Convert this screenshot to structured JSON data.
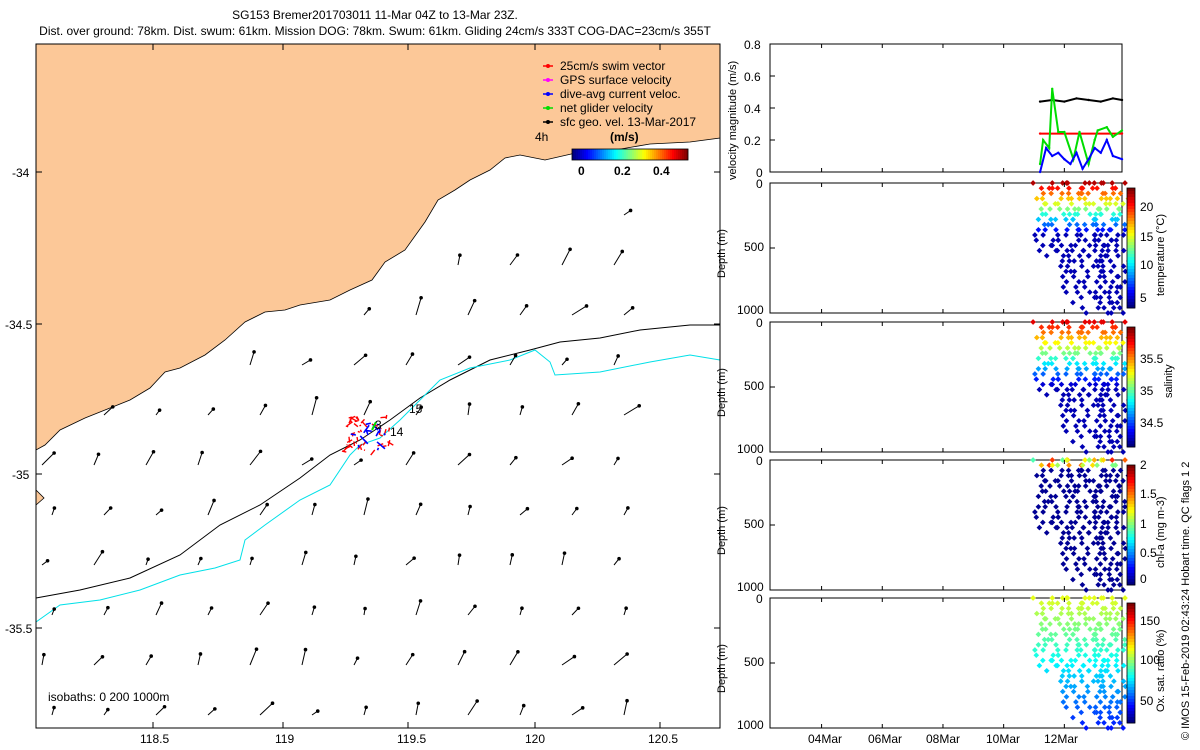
{
  "header": {
    "line1": "SG153 Bremer201703011 11-Mar 04Z to 13-Mar 23Z.",
    "line2": "Dist. over ground: 78km. Dist. swum: 61km. Mission DOG: 78km. Swum: 61km. Gliding 24cm/s 333T COG-DAC=23cm/s 355T"
  },
  "map": {
    "lon_ticks": [
      "118.5",
      "119",
      "119.5",
      "120",
      "120.5"
    ],
    "lat_ticks": [
      "-34",
      "-34.5",
      "-35",
      "-35.5"
    ],
    "legend": [
      {
        "label": "25cm/s swim vector",
        "color": "#ff0000"
      },
      {
        "label": "GPS surface velocity",
        "color": "#ff00ff"
      },
      {
        "label": "dive-avg current veloc.",
        "color": "#0000ff"
      },
      {
        "label": "net glider velocity",
        "color": "#00dd00"
      },
      {
        "label": "sfc geo. vel. 13-Mar-2017",
        "color": "#000000"
      }
    ],
    "vector_duration": "4h",
    "colorbar_units": "(m/s)",
    "colorbar_ticks": [
      "0",
      "0.2",
      "0.4"
    ],
    "isobaths_label": "isobaths: 0   200  1000m",
    "track_labels": [
      "15",
      "14",
      "3"
    ],
    "colors": {
      "land": "#fcc898",
      "isobath200": "#000000",
      "isobath1000": "#00e0e8"
    }
  },
  "right_axis_dates": [
    "04Mar",
    "06Mar",
    "08Mar",
    "10Mar",
    "12Mar"
  ],
  "chart_data": [
    {
      "type": "line",
      "ylabel": "velocity magnitude (m/s)",
      "ylim": [
        0,
        0.8
      ],
      "yticks": [
        "0",
        "0.2",
        "0.4",
        "0.6",
        "0.8"
      ],
      "xlim_days": [
        2.3,
        13.9
      ],
      "series": [
        {
          "name": "sfc geo. vel.",
          "color": "#000000",
          "x": [
            11.2,
            11.6,
            12.0,
            12.4,
            12.8,
            13.2,
            13.6,
            13.9
          ],
          "values": [
            0.44,
            0.45,
            0.44,
            0.46,
            0.45,
            0.44,
            0.46,
            0.45
          ]
        },
        {
          "name": "swim",
          "color": "#ff0000",
          "x": [
            11.2,
            13.9
          ],
          "values": [
            0.24,
            0.24
          ]
        },
        {
          "name": "net glider velocity",
          "color": "#00dd00",
          "x": [
            11.2,
            11.3,
            11.5,
            11.6,
            11.8,
            12.0,
            12.3,
            12.5,
            12.8,
            13.0,
            13.1,
            13.4,
            13.6,
            13.9
          ],
          "values": [
            0.05,
            0.2,
            0.15,
            0.52,
            0.25,
            0.25,
            0.08,
            0.25,
            0.05,
            0.2,
            0.26,
            0.28,
            0.22,
            0.26
          ]
        },
        {
          "name": "dive-avg current",
          "color": "#0000ff",
          "x": [
            11.2,
            11.4,
            11.6,
            11.8,
            12.0,
            12.2,
            12.4,
            12.6,
            12.8,
            13.0,
            13.2,
            13.4,
            13.6,
            13.9
          ],
          "values": [
            0.0,
            0.15,
            0.1,
            0.12,
            0.08,
            0.05,
            0.12,
            0.02,
            0.08,
            0.15,
            0.12,
            0.2,
            0.1,
            0.08
          ]
        }
      ]
    },
    {
      "type": "scatter",
      "ylabel": "Depth (m)",
      "clabel": "temperature (°C)",
      "ylim": [
        1000,
        0
      ],
      "yticks": [
        "0",
        "500",
        "1000"
      ],
      "cticks": [
        "5",
        "10",
        "15",
        "20"
      ],
      "crange": [
        2,
        24
      ],
      "profiles": [
        [
          11.2,
          560
        ],
        [
          11.5,
          520
        ],
        [
          11.8,
          520
        ],
        [
          12.0,
          860
        ],
        [
          12.3,
          700
        ],
        [
          12.5,
          1000
        ],
        [
          12.8,
          900
        ],
        [
          13.0,
          620
        ],
        [
          13.2,
          980
        ],
        [
          13.4,
          1000
        ],
        [
          13.6,
          1000
        ],
        [
          13.9,
          1000
        ]
      ]
    },
    {
      "type": "scatter",
      "ylabel": "Depth (m)",
      "clabel": "salinity",
      "ylim": [
        1000,
        0
      ],
      "yticks": [
        "0",
        "500",
        "1000"
      ],
      "cticks": [
        "34.5",
        "35",
        "35.5"
      ],
      "crange": [
        34.3,
        35.9
      ],
      "profiles": [
        [
          11.2,
          560
        ],
        [
          11.5,
          520
        ],
        [
          11.8,
          520
        ],
        [
          12.0,
          860
        ],
        [
          12.3,
          700
        ],
        [
          12.5,
          1000
        ],
        [
          12.8,
          900
        ],
        [
          13.0,
          620
        ],
        [
          13.2,
          980
        ],
        [
          13.4,
          1000
        ],
        [
          13.6,
          1000
        ],
        [
          13.9,
          1000
        ]
      ]
    },
    {
      "type": "scatter",
      "ylabel": "Depth (m)",
      "clabel": "chl-a (mg m-3)",
      "ylim": [
        1000,
        0
      ],
      "yticks": [
        "0",
        "500",
        "1000"
      ],
      "cticks": [
        "0",
        "0.5",
        "1",
        "1.5",
        "2"
      ],
      "crange": [
        0,
        2
      ],
      "profiles": [
        [
          11.2,
          560
        ],
        [
          11.5,
          520
        ],
        [
          11.8,
          520
        ],
        [
          12.0,
          860
        ],
        [
          12.3,
          700
        ],
        [
          12.5,
          1000
        ],
        [
          12.8,
          900
        ],
        [
          13.0,
          620
        ],
        [
          13.2,
          980
        ],
        [
          13.4,
          1000
        ],
        [
          13.6,
          1000
        ],
        [
          13.9,
          1000
        ]
      ]
    },
    {
      "type": "scatter",
      "ylabel": "Depth (m)",
      "clabel": "Ox. sat. ratio (%)",
      "ylim": [
        1000,
        0
      ],
      "yticks": [
        "0",
        "500",
        "1000"
      ],
      "cticks": [
        "50",
        "100",
        "150"
      ],
      "crange": [
        30,
        175
      ],
      "profiles": [
        [
          11.2,
          560
        ],
        [
          11.5,
          520
        ],
        [
          11.8,
          520
        ],
        [
          12.0,
          860
        ],
        [
          12.3,
          700
        ],
        [
          12.5,
          1000
        ],
        [
          12.8,
          900
        ],
        [
          13.0,
          620
        ],
        [
          13.2,
          980
        ],
        [
          13.4,
          1000
        ],
        [
          13.6,
          1000
        ],
        [
          13.9,
          1000
        ]
      ]
    }
  ],
  "footer_note": "© IMOS 15-Feb-2019 02:43:24 Hobart time. QC flags 1  2"
}
